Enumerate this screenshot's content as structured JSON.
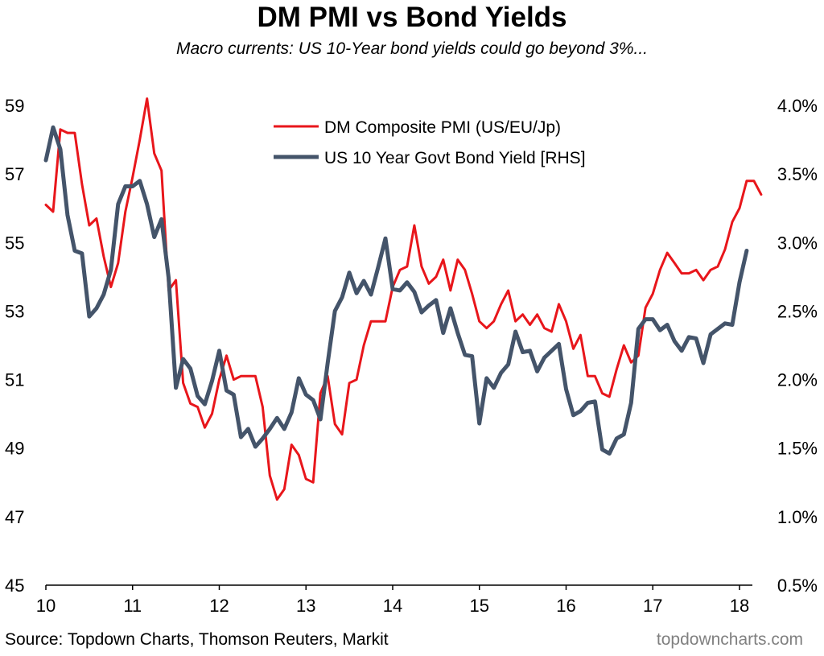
{
  "header": {
    "title": "DM PMI vs Bond Yields",
    "subtitle": "Macro currents: US 10-Year bond yields could go beyond 3%..."
  },
  "footer": {
    "source": "Source: Topdown Charts, Thomson Reuters, Markit",
    "brand": "topdowncharts.com"
  },
  "chart_data": {
    "type": "line",
    "title": "DM PMI vs Bond Yields",
    "subtitle": "Macro currents: US 10-Year bond yields could go beyond 3%...",
    "x_ticks": [
      "10",
      "11",
      "12",
      "13",
      "14",
      "15",
      "16",
      "17",
      "18"
    ],
    "xlim": [
      2010,
      2018.17
    ],
    "ylim_left": [
      45,
      59
    ],
    "y_ticks_left": [
      "45",
      "47",
      "49",
      "51",
      "53",
      "55",
      "57",
      "59"
    ],
    "ylim_right": [
      0.5,
      4.0
    ],
    "y_ticks_right": [
      "0.5%",
      "1.0%",
      "1.5%",
      "2.0%",
      "2.5%",
      "3.0%",
      "3.5%",
      "4.0%"
    ],
    "legend_position": "top-center",
    "grid": false,
    "series": [
      {
        "name": "DM Composite PMI (US/EU/Jp)",
        "axis": "left",
        "color": "#e8161b",
        "x_start": 2010.0,
        "x_step": 0.08333,
        "values": [
          56.1,
          55.9,
          58.3,
          58.2,
          58.2,
          56.7,
          55.5,
          55.7,
          54.6,
          53.7,
          54.4,
          55.9,
          56.9,
          58.0,
          59.2,
          57.6,
          57.1,
          53.6,
          53.9,
          50.9,
          50.3,
          50.2,
          49.6,
          50.0,
          51.0,
          51.7,
          51.0,
          51.1,
          51.1,
          51.1,
          50.2,
          48.2,
          47.5,
          47.8,
          49.1,
          48.8,
          48.1,
          48.0,
          50.6,
          51.1,
          49.7,
          49.4,
          50.9,
          51.0,
          52.0,
          52.7,
          52.7,
          52.7,
          53.7,
          54.2,
          54.3,
          55.5,
          54.3,
          53.8,
          54.0,
          54.5,
          53.6,
          54.5,
          54.2,
          53.5,
          52.7,
          52.5,
          52.7,
          53.2,
          53.6,
          52.7,
          52.9,
          52.6,
          52.9,
          52.5,
          52.4,
          53.2,
          52.7,
          51.9,
          52.3,
          51.1,
          51.1,
          50.6,
          50.5,
          51.3,
          52.0,
          51.5,
          51.7,
          53.1,
          53.5,
          54.2,
          54.7,
          54.4,
          54.1,
          54.1,
          54.2,
          53.9,
          54.2,
          54.3,
          54.8,
          55.6,
          56.0,
          56.8,
          56.8,
          56.4
        ]
      },
      {
        "name": "US 10 Year Govt Bond Yield [RHS]",
        "axis": "right",
        "color": "#44546a",
        "x_start": 2010.0,
        "x_step": 0.08333,
        "values": [
          3.6,
          3.84,
          3.68,
          3.2,
          2.94,
          2.92,
          2.46,
          2.52,
          2.62,
          2.8,
          3.28,
          3.41,
          3.41,
          3.45,
          3.28,
          3.04,
          3.17,
          2.74,
          1.94,
          2.15,
          2.08,
          1.88,
          1.82,
          1.99,
          2.21,
          1.92,
          1.89,
          1.58,
          1.64,
          1.51,
          1.57,
          1.64,
          1.72,
          1.64,
          1.76,
          2.01,
          1.89,
          1.85,
          1.71,
          2.12,
          2.5,
          2.6,
          2.78,
          2.63,
          2.72,
          2.62,
          2.82,
          3.03,
          2.66,
          2.65,
          2.71,
          2.64,
          2.49,
          2.54,
          2.58,
          2.34,
          2.52,
          2.34,
          2.18,
          2.17,
          1.68,
          2.01,
          1.94,
          2.05,
          2.11,
          2.35,
          2.2,
          2.21,
          2.06,
          2.16,
          2.21,
          2.26,
          1.93,
          1.74,
          1.77,
          1.83,
          1.84,
          1.49,
          1.46,
          1.57,
          1.6,
          1.83,
          2.37,
          2.44,
          2.44,
          2.36,
          2.4,
          2.28,
          2.21,
          2.31,
          2.3,
          2.12,
          2.33,
          2.37,
          2.41,
          2.4,
          2.71,
          2.94
        ]
      }
    ]
  }
}
